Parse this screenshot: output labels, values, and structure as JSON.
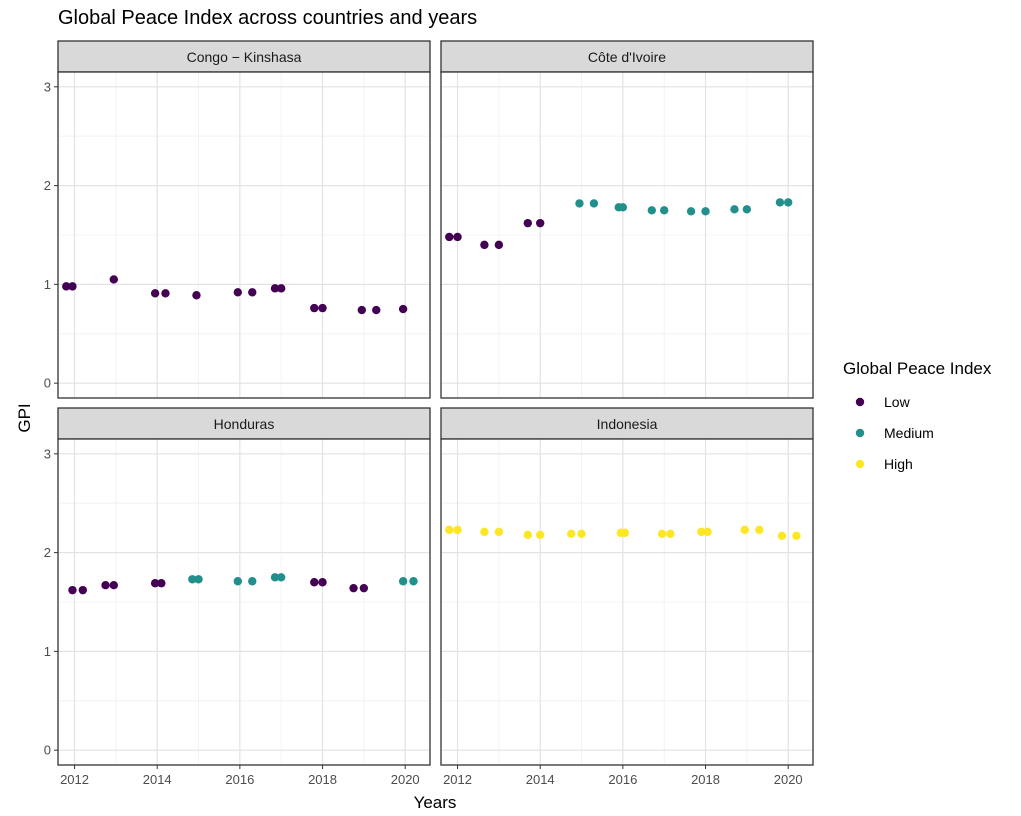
{
  "chart_data": {
    "type": "scatter",
    "title": "Global Peace Index across countries and years",
    "xlabel": "Years",
    "ylabel": "GPI",
    "xlim": [
      2011.6,
      2020.6
    ],
    "ylim": [
      -0.15,
      3.15
    ],
    "x_ticks": [
      2012,
      2014,
      2016,
      2018,
      2020
    ],
    "y_ticks": [
      0,
      1,
      2,
      3
    ],
    "grid": true,
    "legend": {
      "title": "Global Peace Index",
      "position": "right",
      "entries": [
        {
          "name": "Low",
          "color": "#440154"
        },
        {
          "name": "Medium",
          "color": "#21908C"
        },
        {
          "name": "High",
          "color": "#FDE725"
        }
      ]
    },
    "facets": [
      {
        "name": "Congo − Kinshasa",
        "points": [
          {
            "x": 2011.8,
            "y": 0.98,
            "level": "Low"
          },
          {
            "x": 2011.95,
            "y": 0.98,
            "level": "Low"
          },
          {
            "x": 2012.95,
            "y": 1.05,
            "level": "Low"
          },
          {
            "x": 2013.95,
            "y": 0.91,
            "level": "Low"
          },
          {
            "x": 2014.2,
            "y": 0.91,
            "level": "Low"
          },
          {
            "x": 2014.95,
            "y": 0.89,
            "level": "Low"
          },
          {
            "x": 2015.95,
            "y": 0.92,
            "level": "Low"
          },
          {
            "x": 2016.3,
            "y": 0.92,
            "level": "Low"
          },
          {
            "x": 2016.85,
            "y": 0.96,
            "level": "Low"
          },
          {
            "x": 2017.0,
            "y": 0.96,
            "level": "Low"
          },
          {
            "x": 2017.8,
            "y": 0.76,
            "level": "Low"
          },
          {
            "x": 2018.0,
            "y": 0.76,
            "level": "Low"
          },
          {
            "x": 2018.95,
            "y": 0.74,
            "level": "Low"
          },
          {
            "x": 2019.3,
            "y": 0.74,
            "level": "Low"
          },
          {
            "x": 2019.95,
            "y": 0.75,
            "level": "Low"
          }
        ]
      },
      {
        "name": "Côte d'Ivoire",
        "points": [
          {
            "x": 2011.8,
            "y": 1.48,
            "level": "Low"
          },
          {
            "x": 2012.0,
            "y": 1.48,
            "level": "Low"
          },
          {
            "x": 2012.65,
            "y": 1.4,
            "level": "Low"
          },
          {
            "x": 2013.0,
            "y": 1.4,
            "level": "Low"
          },
          {
            "x": 2013.7,
            "y": 1.62,
            "level": "Low"
          },
          {
            "x": 2014.0,
            "y": 1.62,
            "level": "Low"
          },
          {
            "x": 2014.95,
            "y": 1.82,
            "level": "Medium"
          },
          {
            "x": 2015.3,
            "y": 1.82,
            "level": "Medium"
          },
          {
            "x": 2015.9,
            "y": 1.78,
            "level": "Medium"
          },
          {
            "x": 2016.0,
            "y": 1.78,
            "level": "Medium"
          },
          {
            "x": 2016.7,
            "y": 1.75,
            "level": "Medium"
          },
          {
            "x": 2017.0,
            "y": 1.75,
            "level": "Medium"
          },
          {
            "x": 2017.65,
            "y": 1.74,
            "level": "Medium"
          },
          {
            "x": 2018.0,
            "y": 1.74,
            "level": "Medium"
          },
          {
            "x": 2018.7,
            "y": 1.76,
            "level": "Medium"
          },
          {
            "x": 2019.0,
            "y": 1.76,
            "level": "Medium"
          },
          {
            "x": 2019.8,
            "y": 1.83,
            "level": "Medium"
          },
          {
            "x": 2020.0,
            "y": 1.83,
            "level": "Medium"
          }
        ]
      },
      {
        "name": "Honduras",
        "points": [
          {
            "x": 2011.95,
            "y": 1.62,
            "level": "Low"
          },
          {
            "x": 2012.2,
            "y": 1.62,
            "level": "Low"
          },
          {
            "x": 2012.75,
            "y": 1.67,
            "level": "Low"
          },
          {
            "x": 2012.95,
            "y": 1.67,
            "level": "Low"
          },
          {
            "x": 2013.95,
            "y": 1.69,
            "level": "Low"
          },
          {
            "x": 2014.1,
            "y": 1.69,
            "level": "Low"
          },
          {
            "x": 2014.85,
            "y": 1.73,
            "level": "Medium"
          },
          {
            "x": 2015.0,
            "y": 1.73,
            "level": "Medium"
          },
          {
            "x": 2015.95,
            "y": 1.71,
            "level": "Medium"
          },
          {
            "x": 2016.3,
            "y": 1.71,
            "level": "Medium"
          },
          {
            "x": 2016.85,
            "y": 1.75,
            "level": "Medium"
          },
          {
            "x": 2017.0,
            "y": 1.75,
            "level": "Medium"
          },
          {
            "x": 2017.8,
            "y": 1.7,
            "level": "Low"
          },
          {
            "x": 2018.0,
            "y": 1.7,
            "level": "Low"
          },
          {
            "x": 2018.75,
            "y": 1.64,
            "level": "Low"
          },
          {
            "x": 2019.0,
            "y": 1.64,
            "level": "Low"
          },
          {
            "x": 2019.95,
            "y": 1.71,
            "level": "Medium"
          },
          {
            "x": 2020.2,
            "y": 1.71,
            "level": "Medium"
          }
        ]
      },
      {
        "name": "Indonesia",
        "points": [
          {
            "x": 2011.8,
            "y": 2.23,
            "level": "High"
          },
          {
            "x": 2012.0,
            "y": 2.23,
            "level": "High"
          },
          {
            "x": 2012.65,
            "y": 2.21,
            "level": "High"
          },
          {
            "x": 2013.0,
            "y": 2.21,
            "level": "High"
          },
          {
            "x": 2013.7,
            "y": 2.18,
            "level": "High"
          },
          {
            "x": 2014.0,
            "y": 2.18,
            "level": "High"
          },
          {
            "x": 2014.75,
            "y": 2.19,
            "level": "High"
          },
          {
            "x": 2015.0,
            "y": 2.19,
            "level": "High"
          },
          {
            "x": 2015.95,
            "y": 2.2,
            "level": "High"
          },
          {
            "x": 2016.05,
            "y": 2.2,
            "level": "High"
          },
          {
            "x": 2016.95,
            "y": 2.19,
            "level": "High"
          },
          {
            "x": 2017.15,
            "y": 2.19,
            "level": "High"
          },
          {
            "x": 2017.9,
            "y": 2.21,
            "level": "High"
          },
          {
            "x": 2018.05,
            "y": 2.21,
            "level": "High"
          },
          {
            "x": 2018.95,
            "y": 2.23,
            "level": "High"
          },
          {
            "x": 2019.3,
            "y": 2.23,
            "level": "High"
          },
          {
            "x": 2019.85,
            "y": 2.17,
            "level": "High"
          },
          {
            "x": 2020.2,
            "y": 2.17,
            "level": "High"
          }
        ]
      }
    ]
  }
}
